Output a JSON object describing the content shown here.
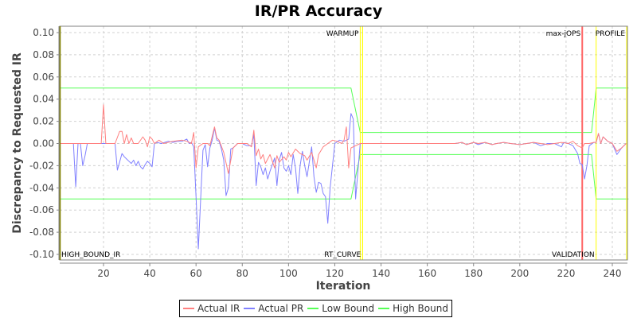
{
  "chart_data": {
    "type": "line",
    "title": "IR/PR Accuracy",
    "xlabel": "Iteration",
    "ylabel": "Discrepancy to Requested IR",
    "xlim": [
      1,
      247
    ],
    "ylim": [
      -0.105,
      0.105
    ],
    "x_ticks": [
      20,
      40,
      60,
      80,
      100,
      120,
      140,
      160,
      180,
      200,
      220,
      240
    ],
    "y_ticks": [
      "0.10",
      "0.08",
      "0.06",
      "0.04",
      "0.02",
      "0.00",
      "-0.02",
      "-0.04",
      "-0.06",
      "-0.08",
      "-0.10"
    ],
    "grid": true,
    "legend_position": "bottom",
    "colors": {
      "actual_ir": "#ff8080",
      "actual_pr": "#8080ff",
      "low_bound": "#55ff55",
      "high_bound": "#55ff55",
      "phase_marker": "#ffff00",
      "max_jops_marker": "#ff6666",
      "plot_border": "#808000"
    },
    "markers": [
      {
        "label": "HIGH_BOUND_IR",
        "x": 1,
        "label_pos": "bottom",
        "color": "#808000"
      },
      {
        "label": "WARMUP",
        "x": 131,
        "label_pos": "top",
        "color": "#ffff00"
      },
      {
        "label": "RT_CURVE",
        "x": 132,
        "label_pos": "bottom",
        "color": "#ffff00"
      },
      {
        "label": "max-jOPS",
        "x": 227,
        "label_pos": "top",
        "color": "#ff6666"
      },
      {
        "label": "VALIDATION",
        "x": 233,
        "label_pos": "bottom",
        "color": "#ffff00"
      },
      {
        "label": "PROFILE",
        "x": 247,
        "label_pos": "top",
        "color": "#ffff00"
      }
    ],
    "series": [
      {
        "name": "Actual IR",
        "points": [
          [
            1,
            0
          ],
          [
            19,
            0
          ],
          [
            20,
            0.035
          ],
          [
            21,
            0
          ],
          [
            25,
            0
          ],
          [
            27,
            0.011
          ],
          [
            28,
            0.011
          ],
          [
            29,
            0
          ],
          [
            30,
            0.008
          ],
          [
            31,
            0
          ],
          [
            32,
            0.005
          ],
          [
            33,
            0
          ],
          [
            35,
            0
          ],
          [
            37,
            0.006
          ],
          [
            38,
            0.003
          ],
          [
            39,
            -0.003
          ],
          [
            40,
            0.006
          ],
          [
            41,
            0.004
          ],
          [
            42,
            0
          ],
          [
            44,
            0.003
          ],
          [
            46,
            0
          ],
          [
            50,
            0.002
          ],
          [
            54,
            0.003
          ],
          [
            56,
            0.002
          ],
          [
            58,
            0
          ],
          [
            59,
            0.01
          ],
          [
            60,
            -0.022
          ],
          [
            61,
            -0.003
          ],
          [
            63,
            0
          ],
          [
            65,
            0
          ],
          [
            66,
            -0.002
          ],
          [
            68,
            0.015
          ],
          [
            69,
            0.005
          ],
          [
            70,
            0.003
          ],
          [
            72,
            -0.008
          ],
          [
            74,
            -0.027
          ],
          [
            76,
            -0.004
          ],
          [
            78,
            0
          ],
          [
            82,
            0
          ],
          [
            84,
            -0.003
          ],
          [
            85,
            0.012
          ],
          [
            86,
            -0.011
          ],
          [
            87,
            -0.005
          ],
          [
            88,
            -0.014
          ],
          [
            89,
            -0.01
          ],
          [
            90,
            -0.018
          ],
          [
            92,
            -0.01
          ],
          [
            94,
            -0.022
          ],
          [
            95,
            -0.011
          ],
          [
            96,
            -0.017
          ],
          [
            98,
            -0.012
          ],
          [
            99,
            -0.015
          ],
          [
            100,
            -0.008
          ],
          [
            101,
            -0.012
          ],
          [
            103,
            -0.005
          ],
          [
            105,
            -0.009
          ],
          [
            107,
            -0.011
          ],
          [
            108,
            -0.015
          ],
          [
            110,
            -0.008
          ],
          [
            112,
            -0.022
          ],
          [
            113,
            -0.01
          ],
          [
            115,
            -0.003
          ],
          [
            117,
            0
          ],
          [
            119,
            0.003
          ],
          [
            121,
            0.002
          ],
          [
            123,
            0
          ],
          [
            124,
            0.003
          ],
          [
            125,
            0.015
          ],
          [
            126,
            -0.022
          ],
          [
            127,
            -0.004
          ],
          [
            131,
            0
          ],
          [
            170,
            0
          ],
          [
            172,
            0
          ],
          [
            175,
            0.001
          ],
          [
            177,
            -0.001
          ],
          [
            180,
            0.001
          ],
          [
            182,
            0
          ],
          [
            185,
            0.001
          ],
          [
            188,
            -0.001
          ],
          [
            190,
            0
          ],
          [
            193,
            0.001
          ],
          [
            196,
            0
          ],
          [
            200,
            -0.001
          ],
          [
            203,
            0
          ],
          [
            206,
            0.001
          ],
          [
            209,
            0
          ],
          [
            212,
            -0.001
          ],
          [
            215,
            0
          ],
          [
            218,
            0.001
          ],
          [
            221,
            0
          ],
          [
            223,
            0.002
          ],
          [
            225,
            -0.002
          ],
          [
            227,
            -0.004
          ],
          [
            228,
            0
          ],
          [
            230,
            0
          ],
          [
            232,
            0.001
          ],
          [
            233,
            0.001
          ],
          [
            234,
            0.009
          ],
          [
            235,
            0
          ],
          [
            236,
            0.006
          ],
          [
            238,
            0.002
          ],
          [
            240,
            0
          ],
          [
            242,
            -0.007
          ],
          [
            244,
            -0.004
          ],
          [
            246,
            0
          ]
        ]
      },
      {
        "name": "Actual PR",
        "points": [
          [
            1,
            0
          ],
          [
            7,
            0
          ],
          [
            8,
            -0.039
          ],
          [
            9,
            0
          ],
          [
            10,
            0
          ],
          [
            11,
            -0.02
          ],
          [
            12,
            -0.011
          ],
          [
            13,
            0
          ],
          [
            19,
            0
          ],
          [
            25,
            0
          ],
          [
            26,
            -0.024
          ],
          [
            28,
            -0.009
          ],
          [
            29,
            -0.012
          ],
          [
            30,
            -0.014
          ],
          [
            31,
            -0.016
          ],
          [
            32,
            -0.018
          ],
          [
            33,
            -0.015
          ],
          [
            34,
            -0.02
          ],
          [
            35,
            -0.016
          ],
          [
            36,
            -0.021
          ],
          [
            37,
            -0.023
          ],
          [
            38,
            -0.019
          ],
          [
            39,
            -0.016
          ],
          [
            40,
            -0.018
          ],
          [
            41,
            -0.021
          ],
          [
            42,
            0
          ],
          [
            43,
            0.001
          ],
          [
            45,
            0
          ],
          [
            48,
            0.002
          ],
          [
            50,
            0.001
          ],
          [
            52,
            0.002
          ],
          [
            54,
            0.002
          ],
          [
            56,
            0.004
          ],
          [
            57,
            0
          ],
          [
            58,
            0.001
          ],
          [
            59,
            -0.003
          ],
          [
            60,
            -0.048
          ],
          [
            61,
            -0.095
          ],
          [
            62,
            -0.05
          ],
          [
            63,
            -0.006
          ],
          [
            64,
            -0.001
          ],
          [
            65,
            -0.021
          ],
          [
            66,
            -0.004
          ],
          [
            67,
            0.003
          ],
          [
            68,
            0.014
          ],
          [
            69,
            0.003
          ],
          [
            70,
            0.002
          ],
          [
            71,
            -0.005
          ],
          [
            72,
            -0.015
          ],
          [
            73,
            -0.047
          ],
          [
            74,
            -0.04
          ],
          [
            75,
            -0.005
          ],
          [
            76,
            -0.004
          ],
          [
            78,
            0
          ],
          [
            80,
            0
          ],
          [
            82,
            -0.002
          ],
          [
            84,
            -0.002
          ],
          [
            85,
            0.008
          ],
          [
            86,
            -0.038
          ],
          [
            87,
            -0.017
          ],
          [
            88,
            -0.021
          ],
          [
            89,
            -0.028
          ],
          [
            90,
            -0.022
          ],
          [
            91,
            -0.032
          ],
          [
            92,
            -0.025
          ],
          [
            94,
            -0.013
          ],
          [
            95,
            -0.038
          ],
          [
            96,
            -0.015
          ],
          [
            97,
            -0.008
          ],
          [
            98,
            -0.022
          ],
          [
            99,
            -0.025
          ],
          [
            100,
            -0.02
          ],
          [
            101,
            -0.028
          ],
          [
            102,
            -0.01
          ],
          [
            103,
            -0.022
          ],
          [
            104,
            -0.045
          ],
          [
            105,
            -0.02
          ],
          [
            106,
            -0.007
          ],
          [
            107,
            -0.02
          ],
          [
            108,
            -0.03
          ],
          [
            110,
            -0.003
          ],
          [
            111,
            -0.03
          ],
          [
            112,
            -0.044
          ],
          [
            113,
            -0.035
          ],
          [
            114,
            -0.036
          ],
          [
            115,
            -0.045
          ],
          [
            116,
            -0.048
          ],
          [
            117,
            -0.072
          ],
          [
            118,
            -0.04
          ],
          [
            120,
            0
          ],
          [
            122,
            0.003
          ],
          [
            124,
            0.002
          ],
          [
            126,
            0.004
          ],
          [
            127,
            0.027
          ],
          [
            128,
            0.022
          ],
          [
            129,
            -0.05
          ],
          [
            131,
            0
          ],
          [
            170,
            0
          ],
          [
            172,
            0
          ],
          [
            175,
            0.001
          ],
          [
            177,
            -0.001
          ],
          [
            180,
            0.001
          ],
          [
            182,
            -0.001
          ],
          [
            185,
            0.001
          ],
          [
            188,
            -0.001
          ],
          [
            190,
            0
          ],
          [
            193,
            0.001
          ],
          [
            196,
            0
          ],
          [
            200,
            -0.001
          ],
          [
            203,
            0
          ],
          [
            206,
            0.001
          ],
          [
            209,
            -0.002
          ],
          [
            212,
            0
          ],
          [
            215,
            0
          ],
          [
            218,
            -0.003
          ],
          [
            219,
            0.001
          ],
          [
            221,
            0
          ],
          [
            223,
            -0.002
          ],
          [
            225,
            -0.009
          ],
          [
            226,
            -0.018
          ],
          [
            227,
            -0.019
          ],
          [
            228,
            -0.032
          ],
          [
            229,
            -0.02
          ],
          [
            230,
            -0.002
          ],
          [
            232,
            0.001
          ],
          [
            233,
            0.001
          ],
          [
            234,
            0.009
          ],
          [
            235,
            0
          ],
          [
            236,
            0.006
          ],
          [
            238,
            0.002
          ],
          [
            240,
            0
          ],
          [
            242,
            -0.01
          ],
          [
            244,
            -0.004
          ],
          [
            246,
            0
          ]
        ]
      },
      {
        "name": "Low Bound",
        "points": [
          [
            1,
            -0.05
          ],
          [
            127,
            -0.05
          ],
          [
            131,
            -0.01
          ],
          [
            231,
            -0.01
          ],
          [
            233,
            -0.05
          ],
          [
            247,
            -0.05
          ]
        ]
      },
      {
        "name": "High Bound",
        "points": [
          [
            1,
            0.05
          ],
          [
            127,
            0.05
          ],
          [
            131,
            0.01
          ],
          [
            231,
            0.01
          ],
          [
            233,
            0.05
          ],
          [
            247,
            0.05
          ]
        ]
      }
    ]
  },
  "legend": {
    "items": [
      {
        "label": "Actual IR",
        "color": "#ff8080"
      },
      {
        "label": "Actual PR",
        "color": "#8080ff"
      },
      {
        "label": "Low Bound",
        "color": "#55ff55"
      },
      {
        "label": "High Bound",
        "color": "#55ff55"
      }
    ]
  }
}
